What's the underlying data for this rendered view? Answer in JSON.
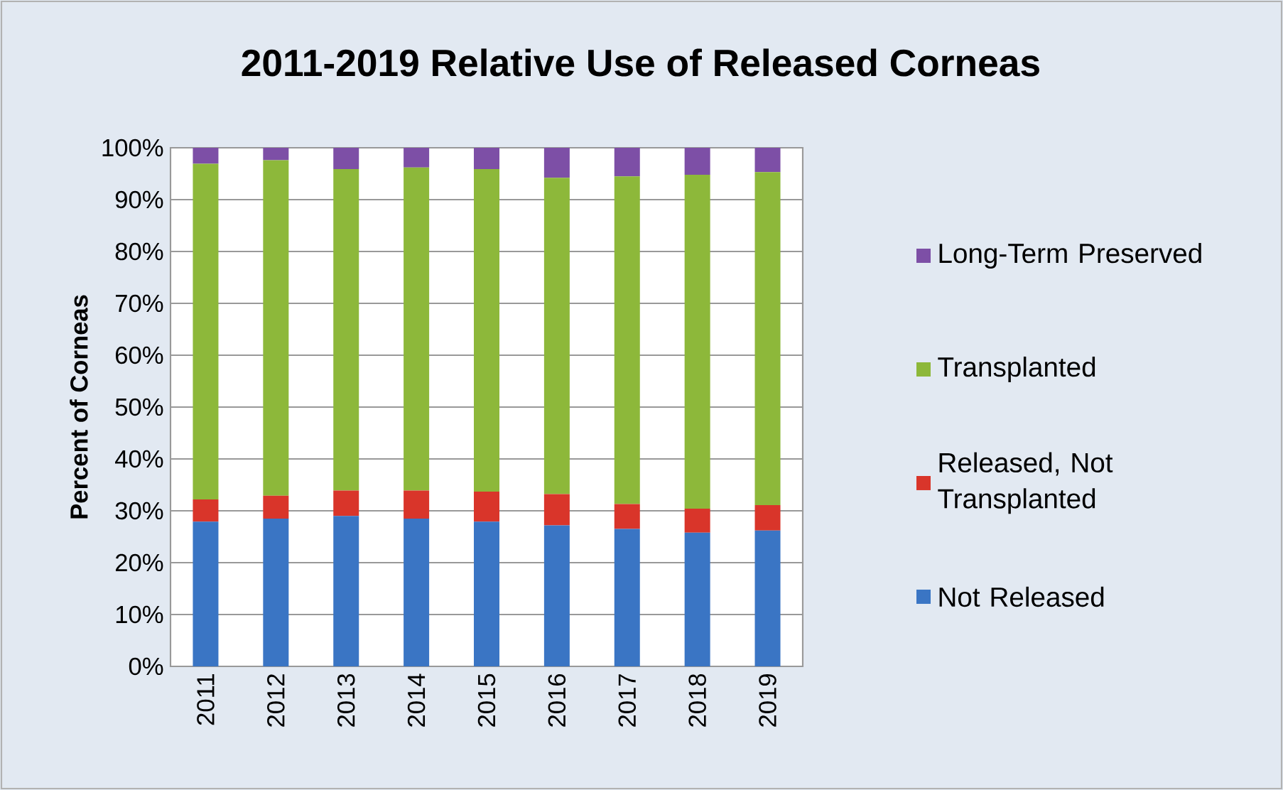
{
  "chart_data": {
    "type": "bar",
    "stacked": true,
    "title": "2011-2019 Relative Use of Released Corneas",
    "ylabel": "Percent of Corneas",
    "categories": [
      "2011",
      "2012",
      "2013",
      "2014",
      "2015",
      "2016",
      "2017",
      "2018",
      "2019"
    ],
    "series": [
      {
        "name": "Not Released",
        "color": "#3a75c4",
        "values": [
          27.9,
          28.5,
          29.0,
          28.5,
          27.9,
          27.2,
          26.5,
          25.8,
          26.2
        ]
      },
      {
        "name": "Released, Not Transplanted",
        "color": "#d9352a",
        "values": [
          4.3,
          4.4,
          4.9,
          5.4,
          5.8,
          6.0,
          4.8,
          4.6,
          4.9
        ]
      },
      {
        "name": "Transplanted",
        "color": "#8db83a",
        "values": [
          64.7,
          64.7,
          62.0,
          62.3,
          62.2,
          61.0,
          63.2,
          64.4,
          64.2
        ]
      },
      {
        "name": "Long-Term Preserved",
        "color": "#7d4fa6",
        "values": [
          3.1,
          2.4,
          4.1,
          3.8,
          4.1,
          5.8,
          5.5,
          5.2,
          4.7
        ]
      }
    ],
    "ylim": [
      0,
      100
    ],
    "yticks": [
      {
        "value": 0,
        "label": "0%"
      },
      {
        "value": 10,
        "label": "10%"
      },
      {
        "value": 20,
        "label": "20%"
      },
      {
        "value": 30,
        "label": "30%"
      },
      {
        "value": 40,
        "label": "40%"
      },
      {
        "value": 50,
        "label": "50%"
      },
      {
        "value": 60,
        "label": "60%"
      },
      {
        "value": 70,
        "label": "70%"
      },
      {
        "value": 80,
        "label": "80%"
      },
      {
        "value": 90,
        "label": "90%"
      },
      {
        "value": 100,
        "label": "100%"
      }
    ],
    "grid": "y",
    "legend": "right"
  }
}
